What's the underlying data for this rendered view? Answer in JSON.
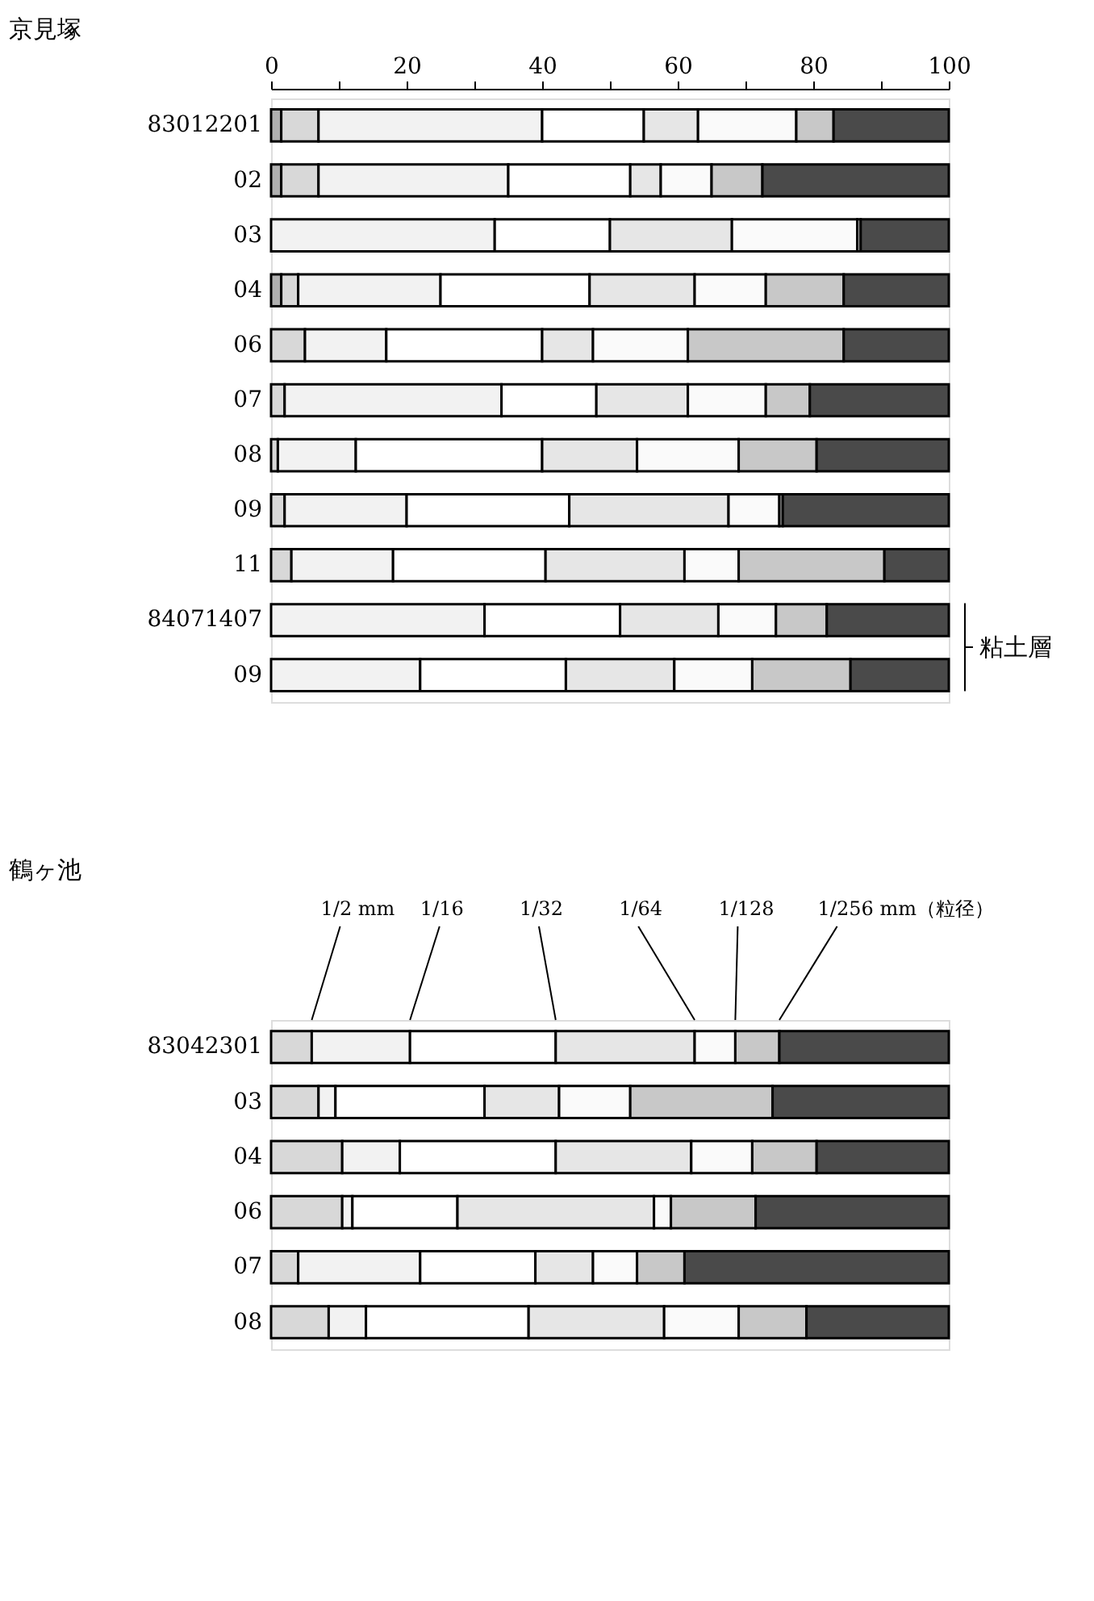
{
  "chart_data": [
    {
      "type": "bar",
      "orientation": "horizontal",
      "stacked": true,
      "title": "京見塚",
      "categories": [
        "83012201",
        "02",
        "03",
        "04",
        "06",
        "07",
        "08",
        "09",
        "11",
        "84071407",
        "09"
      ],
      "series": [
        {
          "color": "#b0b0b0",
          "values": [
            1.5,
            1.5,
            null,
            1.5,
            null,
            null,
            null,
            null,
            null,
            null,
            null
          ]
        },
        {
          "color": "#d8d8d8",
          "values": [
            5.5,
            5.5,
            null,
            2.5,
            5,
            2,
            1,
            2,
            3,
            null,
            null
          ]
        },
        {
          "color": "#f2f2f2",
          "values": [
            33,
            28,
            33,
            21,
            12,
            32,
            11.5,
            18,
            15,
            31.5,
            22
          ]
        },
        {
          "color": "#ffffff",
          "values": [
            15,
            18,
            17,
            22,
            23,
            14,
            27.5,
            24,
            22.5,
            20,
            21.5
          ]
        },
        {
          "color": "#e6e6e6",
          "values": [
            8,
            4.5,
            18,
            15.5,
            7.5,
            13.5,
            14,
            23.5,
            20.5,
            14.5,
            16
          ]
        },
        {
          "color": "#fafafa",
          "values": [
            14.5,
            7.5,
            18.5,
            10.5,
            14,
            11.5,
            15,
            7.5,
            8,
            8.5,
            11.5
          ]
        },
        {
          "color": "#c8c8c8",
          "values": [
            5.5,
            7.5,
            0.5,
            11.5,
            23,
            6.5,
            11.5,
            0.5,
            21.5,
            7.5,
            14.5
          ]
        },
        {
          "color": "#4a4a4a",
          "values": [
            17,
            27.5,
            13,
            15.5,
            15.5,
            20.5,
            19.5,
            24.5,
            9.5,
            18,
            14.5
          ]
        }
      ],
      "xlim": [
        0,
        100
      ],
      "xticks": [
        0,
        {
          "value": 10,
          "label": null
        },
        20,
        {
          "value": 30,
          "label": null
        },
        40,
        {
          "value": 50,
          "label": null
        },
        60,
        {
          "value": 70,
          "label": null
        },
        80,
        {
          "value": 90,
          "label": null
        },
        100
      ],
      "annotations": [
        "粘土層"
      ]
    },
    {
      "type": "bar",
      "orientation": "horizontal",
      "stacked": true,
      "title": "鶴ヶ池",
      "categories": [
        "83042301",
        "03",
        "04",
        "06",
        "07",
        "08"
      ],
      "series": [
        {
          "color": "#d8d8d8",
          "values": [
            6,
            7,
            10.5,
            10.5,
            4,
            8.5
          ]
        },
        {
          "color": "#f2f2f2",
          "values": [
            14.5,
            2.5,
            8.5,
            1.5,
            18,
            5.5
          ]
        },
        {
          "color": "#ffffff",
          "values": [
            21.5,
            22,
            23,
            15.5,
            17,
            24
          ]
        },
        {
          "color": "#e6e6e6",
          "values": [
            20.5,
            11,
            20,
            29,
            8.5,
            20
          ]
        },
        {
          "color": "#fafafa",
          "values": [
            6,
            10.5,
            9,
            2.5,
            6.5,
            11
          ]
        },
        {
          "color": "#c8c8c8",
          "values": [
            6.5,
            21,
            9.5,
            12.5,
            7,
            10
          ]
        },
        {
          "color": "#4a4a4a",
          "values": [
            25,
            26,
            19.5,
            28.5,
            39,
            21
          ]
        }
      ],
      "xlim": [
        0,
        100
      ],
      "tick_labels": "y",
      "annotations": [
        "1/2 mm",
        "1/16",
        "1/32",
        "1/64",
        "1/128",
        "1/256 mm（粒径）"
      ]
    }
  ]
}
